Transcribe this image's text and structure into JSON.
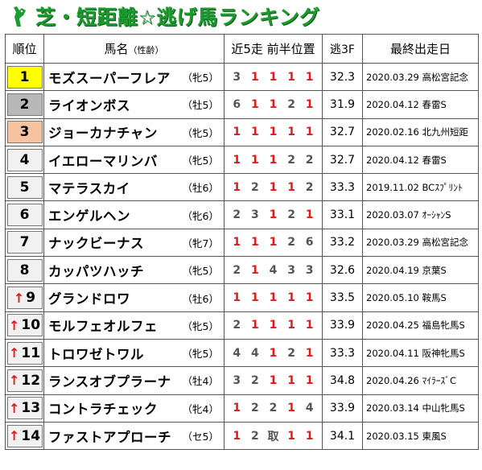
{
  "title": "芝・短距離☆逃げ馬ランキング",
  "colors": {
    "title_green": "#1c9b2e",
    "accent_red": "#e31818",
    "gold": "#ffff00",
    "silver": "#b8b8b8",
    "bronze": "#f7c2a0"
  },
  "headers": {
    "rank": "順位",
    "name": "馬名",
    "name_sub": "（性齢）",
    "positions": "近5走 前半位置",
    "time": "逃3F",
    "last": "最終出走日"
  },
  "rows": [
    {
      "rank": "1",
      "arrow": "",
      "name": "モズスーパーフレア",
      "sex": "（牝5）",
      "pos": [
        "3",
        "1",
        "1",
        "1",
        "1"
      ],
      "time": "32.3",
      "last": "2020.03.29 高松宮記念"
    },
    {
      "rank": "2",
      "arrow": "",
      "name": "ライオンボス",
      "sex": "（牡5）",
      "pos": [
        "6",
        "1",
        "1",
        "2",
        "1"
      ],
      "time": "31.9",
      "last": "2020.04.12 春雷S"
    },
    {
      "rank": "3",
      "arrow": "",
      "name": "ジョーカナチャン",
      "sex": "（牝5）",
      "pos": [
        "1",
        "1",
        "1",
        "1",
        "1"
      ],
      "time": "32.7",
      "last": "2020.02.16 北九州短距"
    },
    {
      "rank": "4",
      "arrow": "",
      "name": "イエローマリンバ",
      "sex": "（牝5）",
      "pos": [
        "1",
        "1",
        "1",
        "2",
        "2"
      ],
      "time": "32.7",
      "last": "2020.04.12 春雷S"
    },
    {
      "rank": "5",
      "arrow": "",
      "name": "マテラスカイ",
      "sex": "（牡6）",
      "pos": [
        "1",
        "2",
        "1",
        "1",
        "2"
      ],
      "time": "33.3",
      "last": "2019.11.02 BCｽﾌﾟﾘﾝﾄ"
    },
    {
      "rank": "6",
      "arrow": "",
      "name": "エンゲルヘン",
      "sex": "（牝6）",
      "pos": [
        "2",
        "3",
        "1",
        "2",
        "1"
      ],
      "time": "33.1",
      "last": "2020.03.07 ｵｰｼｬﾝS"
    },
    {
      "rank": "7",
      "arrow": "",
      "name": "ナックビーナス",
      "sex": "（牝7）",
      "pos": [
        "1",
        "1",
        "1",
        "2",
        "6"
      ],
      "time": "33.2",
      "last": "2020.03.29 高松宮記念"
    },
    {
      "rank": "8",
      "arrow": "",
      "name": "カッパツハッチ",
      "sex": "（牝5）",
      "pos": [
        "2",
        "1",
        "4",
        "3",
        "3"
      ],
      "time": "32.6",
      "last": "2020.04.19 京葉S"
    },
    {
      "rank": "9",
      "arrow": "↑",
      "name": "グランドロワ",
      "sex": "（牡6）",
      "pos": [
        "1",
        "1",
        "1",
        "1",
        "1"
      ],
      "time": "33.5",
      "last": "2020.05.10 鞍馬S"
    },
    {
      "rank": "10",
      "arrow": "↑",
      "name": "モルフェオルフェ",
      "sex": "（牝5）",
      "pos": [
        "2",
        "1",
        "1",
        "1",
        "1"
      ],
      "time": "33.9",
      "last": "2020.04.25 福島牝馬S"
    },
    {
      "rank": "11",
      "arrow": "↑",
      "name": "トロワゼトワル",
      "sex": "（牝5）",
      "pos": [
        "4",
        "4",
        "1",
        "2",
        "1"
      ],
      "time": "33.3",
      "last": "2020.04.11 阪神牝馬S"
    },
    {
      "rank": "12",
      "arrow": "↑",
      "name": "ランスオブプラーナ",
      "sex": "（牡4）",
      "pos": [
        "3",
        "2",
        "1",
        "1",
        "1"
      ],
      "time": "34.8",
      "last": "2020.04.26 ﾏｲﾗｰｽﾞC"
    },
    {
      "rank": "13",
      "arrow": "↑",
      "name": "コントラチェック",
      "sex": "（牝4）",
      "pos": [
        "1",
        "2",
        "2",
        "1",
        "4"
      ],
      "time": "33.9",
      "last": "2020.03.14 中山牝馬S"
    },
    {
      "rank": "14",
      "arrow": "↑",
      "name": "ファストアプローチ",
      "sex": "（セ5）",
      "pos": [
        "1",
        "2",
        "取",
        "1",
        "1"
      ],
      "time": "34.1",
      "last": "2020.03.15 東風S"
    }
  ]
}
